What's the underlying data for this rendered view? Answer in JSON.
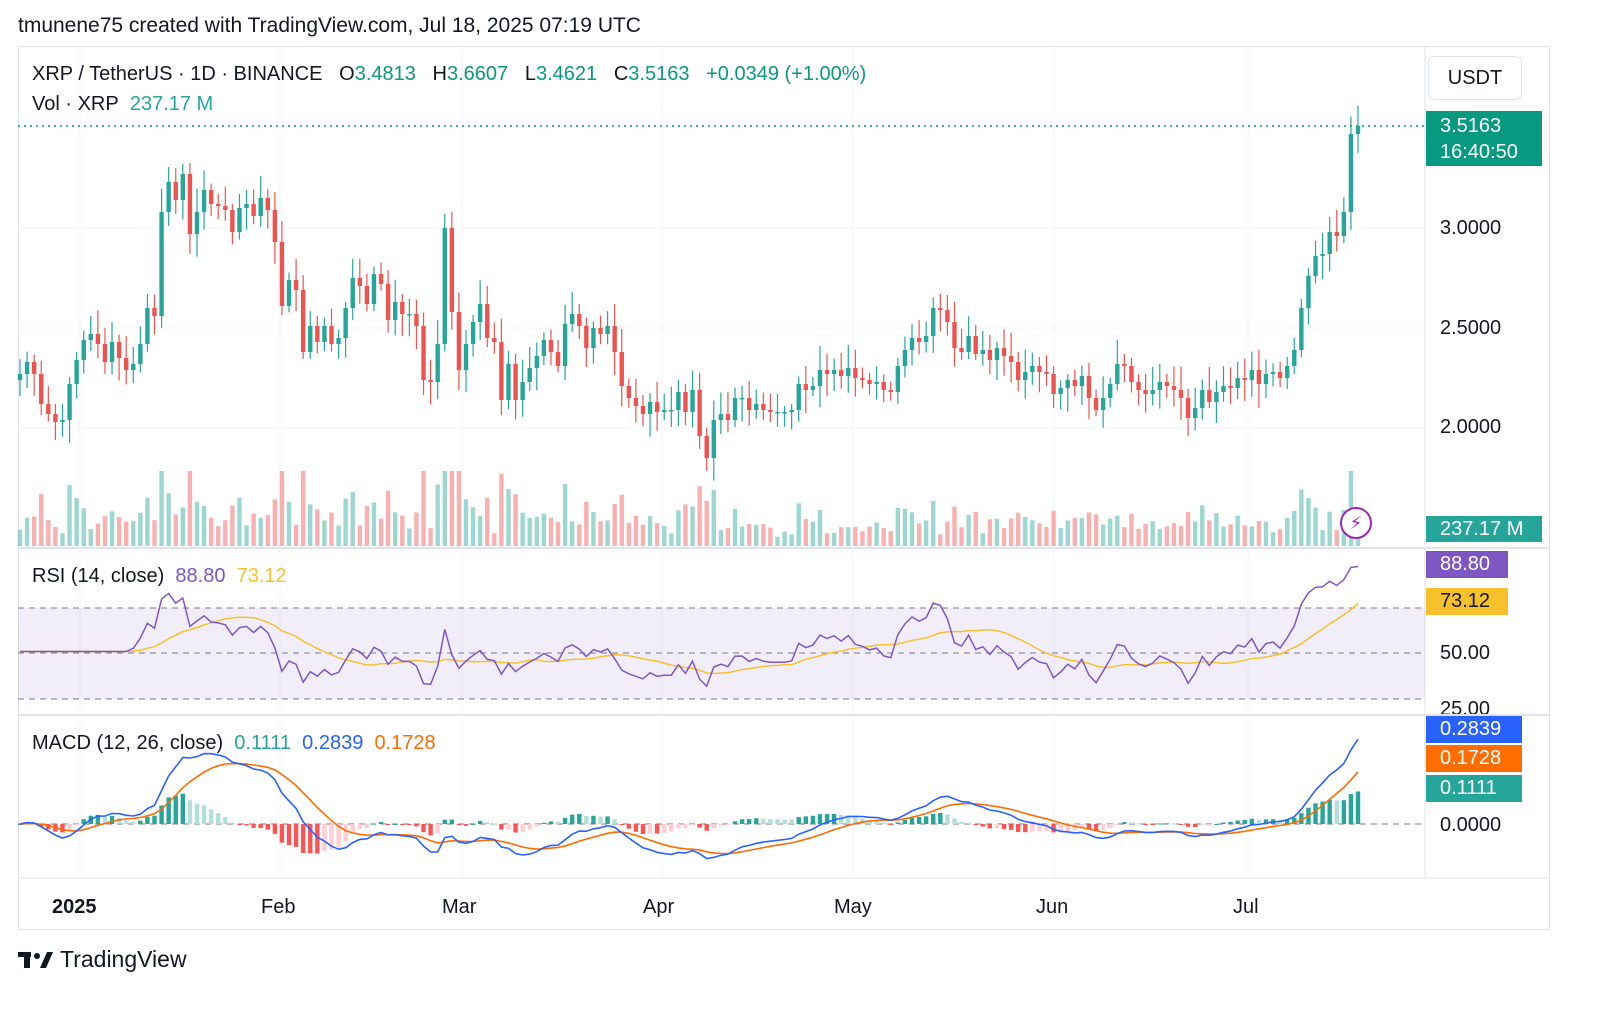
{
  "header": {
    "credit": "tmunene75 created with TradingView.com, Jul 18, 2025 07:19 UTC"
  },
  "price_legend": {
    "symbol": "XRP / TetherUS · 1D · BINANCE",
    "o_label": "O",
    "o": "3.4813",
    "h_label": "H",
    "h": "3.6607",
    "l_label": "L",
    "l": "3.4621",
    "c_label": "C",
    "c": "3.5163",
    "change": "+0.0349 (+1.00%)"
  },
  "vol_legend": {
    "label": "Vol · XRP",
    "value": "237.17 M"
  },
  "currency_button": "USDT",
  "price_axis": {
    "ticks": [
      "3.0000",
      "2.5000",
      "2.0000"
    ],
    "last_price": "3.5163",
    "countdown": "16:40:50",
    "volume_tag": "237.17 M"
  },
  "rsi": {
    "label": "RSI (14, close)",
    "value": "88.80",
    "ma": "73.12",
    "axis_ticks": [
      "50.00",
      "25.00"
    ]
  },
  "macd": {
    "label": "MACD (12, 26, close)",
    "hist": "0.1111",
    "macd": "0.2839",
    "signal": "0.1728",
    "axis_ticks": [
      "0.0000"
    ]
  },
  "time_axis": [
    "2025",
    "Feb",
    "Mar",
    "Apr",
    "May",
    "Jun",
    "Jul"
  ],
  "footer": {
    "logo_text": "TradingView"
  },
  "colors": {
    "up": "#26a69a",
    "down": "#ef5350",
    "rsi": "#7e57c2",
    "rsi_ma": "#f7c12c",
    "macd": "#2962ff",
    "signal": "#ff6d00"
  },
  "chart_data": {
    "type": "candlestick",
    "title": "XRP / TetherUS · 1D · BINANCE",
    "x_ticks": [
      "2025",
      "Feb",
      "Mar",
      "Apr",
      "May",
      "Jun",
      "Jul"
    ],
    "ylim": [
      1.5,
      3.75
    ],
    "y_ticks": [
      2.0,
      2.5,
      3.0
    ],
    "close_series": [
      2.27,
      2.33,
      2.27,
      2.12,
      2.07,
      2.03,
      2.04,
      2.22,
      2.34,
      2.44,
      2.47,
      2.42,
      2.33,
      2.43,
      2.35,
      2.29,
      2.32,
      2.42,
      2.6,
      2.56,
      3.08,
      3.23,
      3.14,
      3.27,
      2.97,
      3.08,
      3.19,
      3.12,
      3.11,
      3.09,
      2.98,
      3.1,
      3.12,
      3.06,
      3.15,
      3.09,
      2.93,
      2.61,
      2.74,
      2.69,
      2.38,
      2.51,
      2.43,
      2.51,
      2.42,
      2.45,
      2.6,
      2.75,
      2.71,
      2.62,
      2.77,
      2.72,
      2.54,
      2.63,
      2.57,
      2.57,
      2.51,
      2.24,
      2.23,
      2.42,
      3.0,
      2.58,
      2.29,
      2.42,
      2.53,
      2.62,
      2.45,
      2.43,
      2.14,
      2.32,
      2.14,
      2.23,
      2.3,
      2.36,
      2.44,
      2.38,
      2.31,
      2.52,
      2.57,
      2.51,
      2.4,
      2.5,
      2.47,
      2.51,
      2.38,
      2.21,
      2.15,
      2.11,
      2.07,
      2.13,
      2.08,
      2.09,
      2.09,
      2.18,
      2.08,
      2.19,
      1.96,
      1.85,
      2.04,
      2.07,
      2.04,
      2.15,
      2.15,
      2.09,
      2.12,
      2.09,
      2.08,
      2.08,
      2.08,
      2.09,
      2.22,
      2.19,
      2.21,
      2.29,
      2.27,
      2.29,
      2.26,
      2.3,
      2.25,
      2.24,
      2.22,
      2.23,
      2.19,
      2.18,
      2.31,
      2.39,
      2.45,
      2.43,
      2.46,
      2.6,
      2.59,
      2.53,
      2.4,
      2.38,
      2.46,
      2.37,
      2.39,
      2.34,
      2.4,
      2.36,
      2.33,
      2.24,
      2.28,
      2.31,
      2.28,
      2.27,
      2.17,
      2.2,
      2.24,
      2.21,
      2.26,
      2.15,
      2.09,
      2.15,
      2.22,
      2.32,
      2.31,
      2.23,
      2.19,
      2.17,
      2.19,
      2.23,
      2.21,
      2.19,
      2.15,
      2.05,
      2.1,
      2.19,
      2.13,
      2.18,
      2.21,
      2.2,
      2.25,
      2.24,
      2.29,
      2.22,
      2.27,
      2.28,
      2.25,
      2.31,
      2.39,
      2.6,
      2.76,
      2.86,
      2.87,
      2.98,
      2.96,
      3.08,
      3.47,
      3.51
    ],
    "volume_tag": "237.17 M",
    "indicators": {
      "rsi": {
        "params": "14, close",
        "value": 88.8,
        "ma": 73.12,
        "levels": [
          70,
          50,
          30
        ]
      },
      "macd": {
        "params": "12, 26, close",
        "macd": 0.2839,
        "signal": 0.1728,
        "histogram": 0.1111
      }
    },
    "last_price": 3.5163
  }
}
